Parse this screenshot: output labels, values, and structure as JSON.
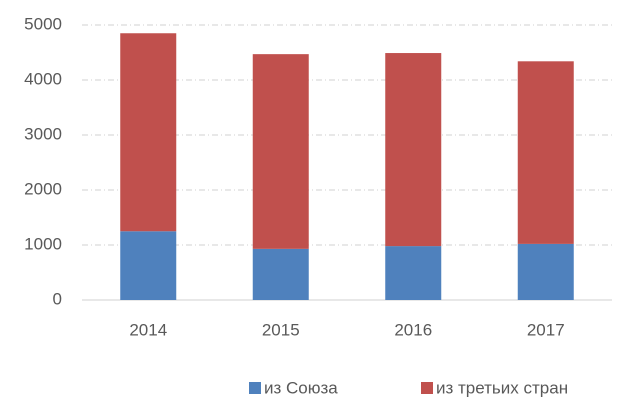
{
  "chart_data": {
    "type": "bar",
    "stacked": true,
    "categories": [
      "2014",
      "2015",
      "2016",
      "2017"
    ],
    "series": [
      {
        "name": "из Союза",
        "color": "#4f81bd",
        "values": [
          1250,
          930,
          980,
          1020
        ]
      },
      {
        "name": "из третьих стран",
        "color": "#c0504d",
        "values": [
          3600,
          3540,
          3510,
          3320
        ]
      }
    ],
    "ylim": [
      0,
      5000
    ],
    "yticks": [
      0,
      1000,
      2000,
      3000,
      4000,
      5000
    ],
    "grid": true,
    "legend": "bottom"
  }
}
